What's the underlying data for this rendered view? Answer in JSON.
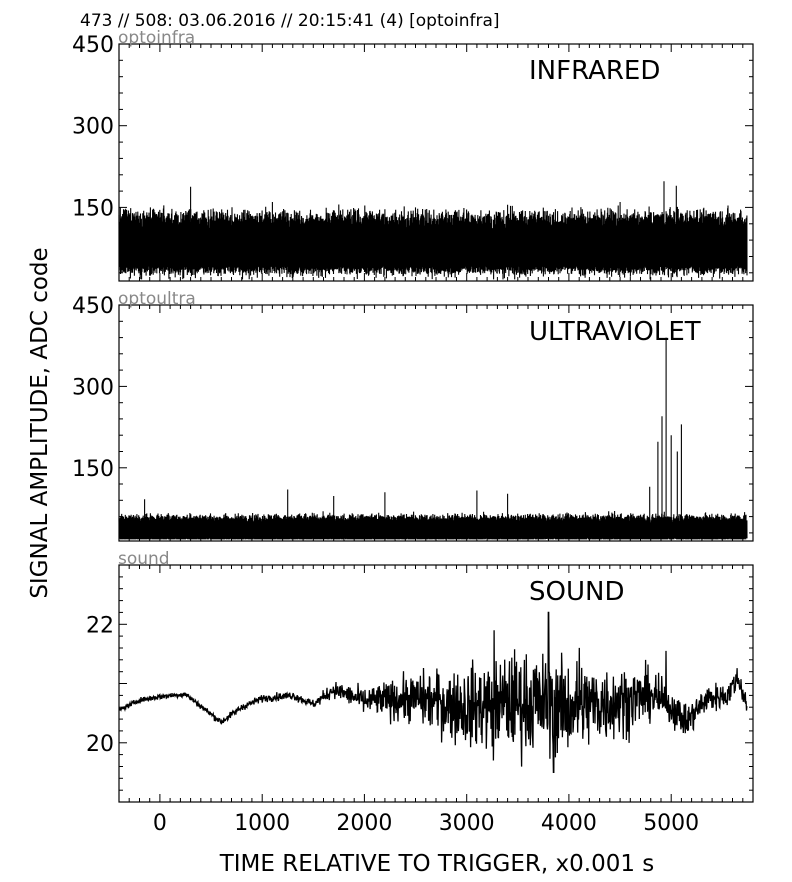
{
  "header": {
    "text": "473 // 508:   03.06.2016 // 20:15:41 (4)  [optoinfra]"
  },
  "ylabel": "SIGNAL AMPLITUDE,  ADC code",
  "xlabel": "TIME RELATIVE TO TRIGGER,   x0.001 s",
  "chart_data": [
    {
      "type": "line",
      "source_label": "optoinfra",
      "title": "INFRARED",
      "xlim": [
        -400,
        5800
      ],
      "ylim": [
        15,
        450
      ],
      "yticks": [
        "450",
        "300",
        "150"
      ],
      "x_ticks_labeled": false,
      "envelope": {
        "baseline": 78,
        "low": 42,
        "high": 130
      },
      "spikes": [
        {
          "x": 300,
          "y": 188
        },
        {
          "x": 1100,
          "y": 160
        },
        {
          "x": 2500,
          "y": 150
        },
        {
          "x": 3400,
          "y": 155
        },
        {
          "x": 4500,
          "y": 160
        },
        {
          "x": 4930,
          "y": 198
        },
        {
          "x": 5050,
          "y": 190
        }
      ]
    },
    {
      "type": "line",
      "source_label": "optoultra",
      "title": "ULTRAVIOLET",
      "xlim": [
        -400,
        5800
      ],
      "ylim": [
        15,
        450
      ],
      "yticks": [
        "450",
        "300",
        "150"
      ],
      "x_ticks_labeled": false,
      "envelope": {
        "baseline": 35,
        "low": 20,
        "high": 58
      },
      "spikes": [
        {
          "x": -150,
          "y": 92
        },
        {
          "x": 1250,
          "y": 110
        },
        {
          "x": 1700,
          "y": 98
        },
        {
          "x": 2200,
          "y": 105
        },
        {
          "x": 3100,
          "y": 108
        },
        {
          "x": 3400,
          "y": 102
        },
        {
          "x": 4790,
          "y": 115
        },
        {
          "x": 4870,
          "y": 198
        },
        {
          "x": 4910,
          "y": 245
        },
        {
          "x": 4950,
          "y": 390
        },
        {
          "x": 5000,
          "y": 210
        },
        {
          "x": 5060,
          "y": 180
        },
        {
          "x": 5100,
          "y": 230
        }
      ]
    },
    {
      "type": "line",
      "source_label": "sound",
      "title": "SOUND",
      "xlim": [
        -400,
        5800
      ],
      "ylim": [
        19,
        23
      ],
      "yticks": [
        "22",
        "20"
      ],
      "xticks": [
        "0",
        "1000",
        "2000",
        "3000",
        "4000",
        "5000"
      ],
      "trend": [
        {
          "x": -400,
          "y": 20.55
        },
        {
          "x": -200,
          "y": 20.72
        },
        {
          "x": 0,
          "y": 20.78
        },
        {
          "x": 250,
          "y": 20.82
        },
        {
          "x": 450,
          "y": 20.55
        },
        {
          "x": 600,
          "y": 20.35
        },
        {
          "x": 800,
          "y": 20.6
        },
        {
          "x": 1000,
          "y": 20.75
        },
        {
          "x": 1300,
          "y": 20.8
        },
        {
          "x": 1500,
          "y": 20.65
        },
        {
          "x": 1700,
          "y": 20.9
        },
        {
          "x": 2000,
          "y": 20.7
        },
        {
          "x": 2500,
          "y": 20.75
        },
        {
          "x": 3000,
          "y": 20.6
        },
        {
          "x": 3500,
          "y": 20.7
        },
        {
          "x": 4000,
          "y": 20.6
        },
        {
          "x": 4500,
          "y": 20.7
        },
        {
          "x": 4800,
          "y": 20.8
        },
        {
          "x": 5000,
          "y": 20.6
        },
        {
          "x": 5150,
          "y": 20.35
        },
        {
          "x": 5350,
          "y": 20.75
        },
        {
          "x": 5550,
          "y": 20.8
        },
        {
          "x": 5650,
          "y": 21.1
        },
        {
          "x": 5740,
          "y": 20.65
        }
      ],
      "noise_amplitude": [
        {
          "x": -400,
          "y": 0.03
        },
        {
          "x": 1500,
          "y": 0.06
        },
        {
          "x": 2000,
          "y": 0.18
        },
        {
          "x": 2500,
          "y": 0.35
        },
        {
          "x": 3000,
          "y": 0.55
        },
        {
          "x": 3500,
          "y": 0.7
        },
        {
          "x": 4000,
          "y": 0.65
        },
        {
          "x": 4500,
          "y": 0.5
        },
        {
          "x": 5000,
          "y": 0.25
        },
        {
          "x": 5740,
          "y": 0.15
        }
      ],
      "peaks": [
        {
          "x": 3270,
          "y": 21.9
        },
        {
          "x": 3800,
          "y": 22.2
        },
        {
          "x": 3850,
          "y": 19.5
        },
        {
          "x": 3260,
          "y": 19.7
        },
        {
          "x": 4950,
          "y": 21.55
        },
        {
          "x": 4100,
          "y": 21.6
        }
      ],
      "end_x": 5740
    }
  ]
}
